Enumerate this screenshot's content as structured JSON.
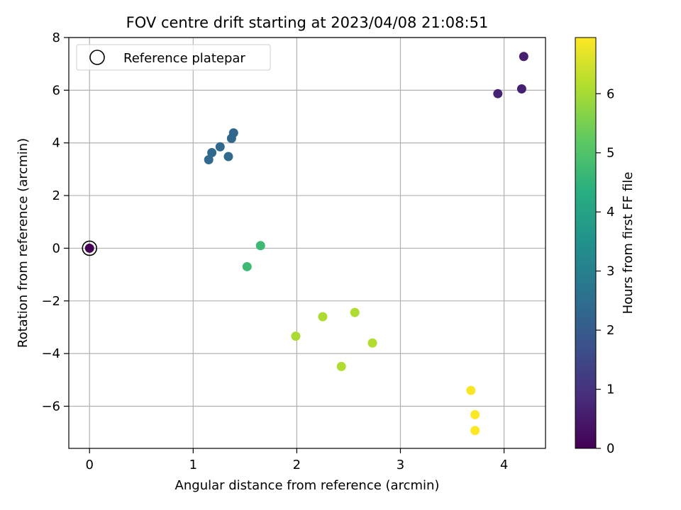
{
  "chart_data": {
    "type": "scatter",
    "title": "FOV centre drift starting at 2023/04/08 21:08:51",
    "xlabel": "Angular distance from reference (arcmin)",
    "ylabel": "Rotation from reference (arcmin)",
    "xlim": [
      -0.2,
      4.4
    ],
    "ylim": [
      -7.6,
      8
    ],
    "xticks": [
      0,
      1,
      2,
      3,
      4
    ],
    "yticks": [
      -6,
      -4,
      -2,
      0,
      2,
      4,
      6,
      8
    ],
    "grid": true,
    "legend": {
      "location": "upper-left",
      "entries": [
        "Reference platepar"
      ]
    },
    "colorbar": {
      "label": "Hours from first FF file",
      "colormap": "viridis",
      "range": [
        0,
        6.95
      ],
      "ticks": [
        0,
        1,
        2,
        3,
        4,
        5,
        6
      ]
    },
    "reference_point": {
      "x": 0,
      "y": 0
    },
    "points": [
      {
        "x": 0.0,
        "y": 0.0,
        "hours": 0.0
      },
      {
        "x": 4.19,
        "y": 7.28,
        "hours": 0.6
      },
      {
        "x": 4.17,
        "y": 6.05,
        "hours": 0.62
      },
      {
        "x": 3.94,
        "y": 5.87,
        "hours": 0.66
      },
      {
        "x": 1.39,
        "y": 4.38,
        "hours": 2.3
      },
      {
        "x": 1.37,
        "y": 4.17,
        "hours": 2.32
      },
      {
        "x": 1.26,
        "y": 3.85,
        "hours": 2.34
      },
      {
        "x": 1.18,
        "y": 3.63,
        "hours": 2.36
      },
      {
        "x": 1.15,
        "y": 3.36,
        "hours": 2.38
      },
      {
        "x": 1.34,
        "y": 3.48,
        "hours": 2.4
      },
      {
        "x": 1.65,
        "y": 0.1,
        "hours": 4.7
      },
      {
        "x": 1.52,
        "y": -0.7,
        "hours": 4.72
      },
      {
        "x": 1.99,
        "y": -3.34,
        "hours": 6.05
      },
      {
        "x": 2.25,
        "y": -2.6,
        "hours": 6.07
      },
      {
        "x": 2.56,
        "y": -2.44,
        "hours": 6.09
      },
      {
        "x": 2.43,
        "y": -4.49,
        "hours": 6.11
      },
      {
        "x": 2.73,
        "y": -3.6,
        "hours": 6.13
      },
      {
        "x": 3.68,
        "y": -5.4,
        "hours": 6.9
      },
      {
        "x": 3.72,
        "y": -6.32,
        "hours": 6.92
      },
      {
        "x": 3.72,
        "y": -6.92,
        "hours": 6.94
      }
    ]
  }
}
